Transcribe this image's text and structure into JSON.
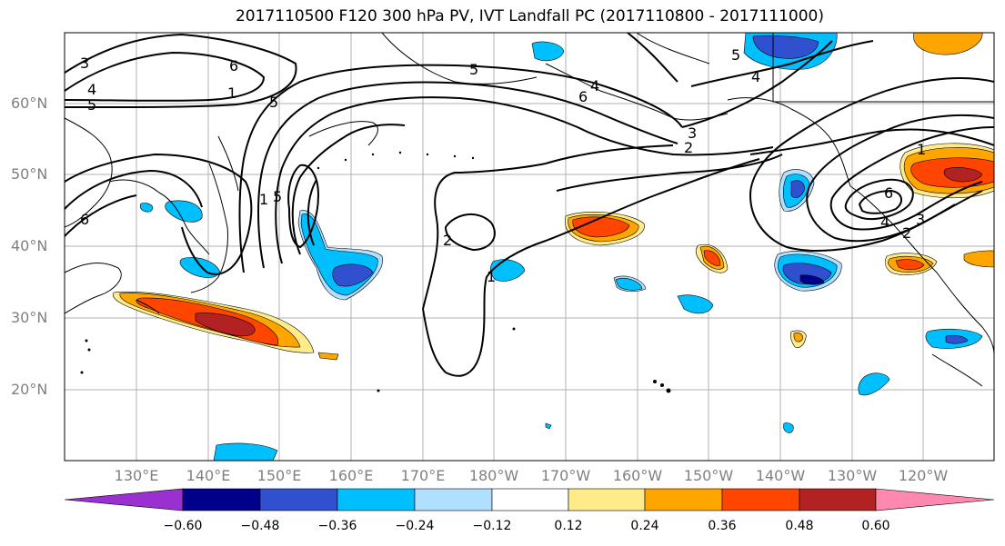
{
  "title": "2017110500 F120 300 hPa PV, IVT Landfall PC (2017110800 - 2017111000)",
  "lat_labels": [
    {
      "text": "60°N"
    },
    {
      "text": "50°N"
    },
    {
      "text": "40°N"
    },
    {
      "text": "30°N"
    },
    {
      "text": "20°N"
    }
  ],
  "lon_labels": [
    {
      "text": "130°E"
    },
    {
      "text": "140°E"
    },
    {
      "text": "150°E"
    },
    {
      "text": "160°E"
    },
    {
      "text": "170°E"
    },
    {
      "text": "180°W"
    },
    {
      "text": "170°W"
    },
    {
      "text": "160°W"
    },
    {
      "text": "150°W"
    },
    {
      "text": "140°W"
    },
    {
      "text": "130°W"
    },
    {
      "text": "120°W"
    }
  ],
  "contour_labels": [
    "1",
    "2",
    "3",
    "4",
    "5",
    "6"
  ],
  "colorbar": {
    "ticks": [
      "−0.60",
      "−0.48",
      "−0.36",
      "−0.24",
      "−0.12",
      "0.12",
      "0.24",
      "0.36",
      "0.48",
      "0.60"
    ],
    "colors": [
      "#9b30d0",
      "#00008b",
      "#3050d0",
      "#00bfff",
      "#b0e0ff",
      "#ffffff",
      "#ffeb8a",
      "#ffa500",
      "#ff4500",
      "#b22222",
      "#ff88b0"
    ]
  }
}
